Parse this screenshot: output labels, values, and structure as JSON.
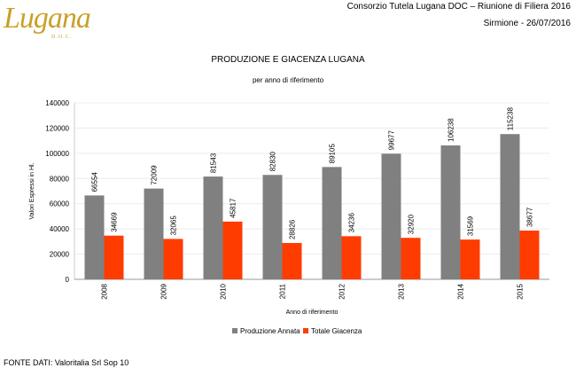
{
  "header": {
    "organization": "Consorzio Tutela Lugana DOC – Riunione di Filiera 2016",
    "location_date": "Sirmione -  26/07/2016"
  },
  "logo": {
    "text": "Lugana",
    "sub": "D.O.C.",
    "color": "#c9a12a"
  },
  "source": "FONTE DATI: Valoritalia Srl Sop 10",
  "chart_data": {
    "type": "bar",
    "title": "PRODUZIONE E GIACENZA LUGANA",
    "subtitle": "per anno di riferimento",
    "xlabel": "Anno di riferimento",
    "ylabel": "Valori Espressi in Hl.",
    "ylim": [
      0,
      140000
    ],
    "yticks": [
      0,
      20000,
      40000,
      60000,
      80000,
      100000,
      120000,
      140000
    ],
    "grid": true,
    "legend": "bottom",
    "categories": [
      "2008",
      "2009",
      "2010",
      "2011",
      "2012",
      "2013",
      "2014",
      "2015"
    ],
    "series": [
      {
        "name": "Produzione Annata",
        "color": "#808080",
        "values": [
          66554,
          72009,
          81543,
          82830,
          89105,
          99677,
          106238,
          115238
        ]
      },
      {
        "name": "Totale Giacenza",
        "color": "#ff3c00",
        "values": [
          34669,
          32065,
          45817,
          28826,
          34236,
          32920,
          31569,
          38677
        ]
      }
    ]
  }
}
